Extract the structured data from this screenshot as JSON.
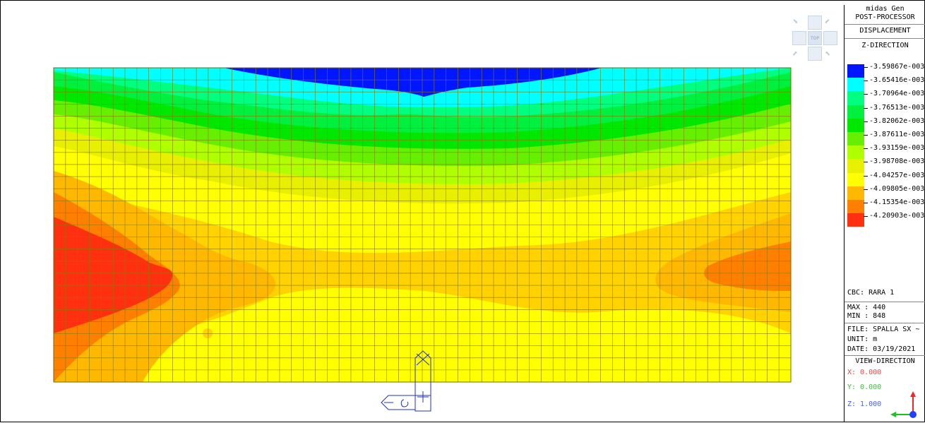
{
  "legend": {
    "header_line1": "midas Gen",
    "header_line2": "POST-PROCESSOR",
    "result_type": "DISPLACEMENT",
    "component": "Z-DIRECTION",
    "levels": [
      {
        "value": "-3.59867e-003",
        "color": "#0016ff"
      },
      {
        "value": "-3.65416e-003",
        "color": "#00ffff"
      },
      {
        "value": "-3.70964e-003",
        "color": "#00ff80"
      },
      {
        "value": "-3.76513e-003",
        "color": "#00f040"
      },
      {
        "value": "-3.82062e-003",
        "color": "#00e800"
      },
      {
        "value": "-3.87611e-003",
        "color": "#66f000"
      },
      {
        "value": "-3.93159e-003",
        "color": "#b0ff00"
      },
      {
        "value": "-3.98708e-003",
        "color": "#e8f000"
      },
      {
        "value": "-4.04257e-003",
        "color": "#ffff00"
      },
      {
        "value": "-4.09805e-003",
        "color": "#ffb800"
      },
      {
        "value": "-4.15354e-003",
        "color": "#ff8000"
      },
      {
        "value": "-4.20903e-003",
        "color": "#ff3010"
      }
    ],
    "cbc": "CBC: RARA 1",
    "max": "MAX : 440",
    "min": "MIN : 848",
    "file": "FILE: SPALLA SX ~",
    "unit": "UNIT: m",
    "date": "DATE: 03/19/2021",
    "view_direction_label": "VIEW-DIRECTION",
    "view_x": "X: 0.000",
    "view_y": "Y: 0.000",
    "view_z": "Z: 1.000",
    "view_x_color": "#ff4040",
    "view_y_color": "#40c040",
    "view_z_color": "#4060ff"
  },
  "viewcube": {
    "top_label": "TOP"
  },
  "contour_colors": {
    "blue": "#0016ff",
    "cyan": "#00ffff",
    "springgreen": "#00ff80",
    "green1": "#00f040",
    "green2": "#00e800",
    "lime": "#66f000",
    "yellowgreen": "#b0ff00",
    "lightyellow": "#e8f000",
    "yellow": "#ffff00",
    "gold": "#ffd200",
    "orange1": "#ffb800",
    "orange2": "#ff8000",
    "red": "#ff3010",
    "mesh_line": "#8a7a00"
  }
}
